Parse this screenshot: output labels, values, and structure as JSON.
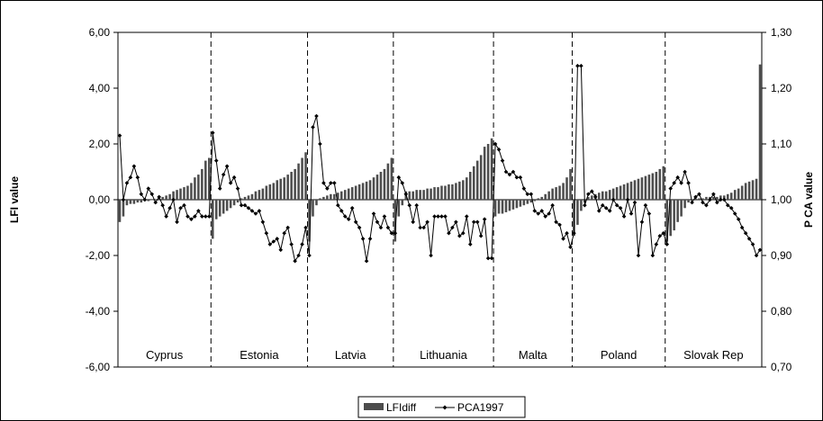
{
  "chart_data": {
    "type": "bar",
    "title": "",
    "ylabel": "LFI value",
    "y2label": "P CA value",
    "ylim": [
      -6,
      6
    ],
    "y2lim": [
      0.7,
      1.3
    ],
    "yticks": [
      "6,00",
      "4,00",
      "2,00",
      "0,00",
      "-2,00",
      "-4,00",
      "-6,00"
    ],
    "y2ticks": [
      "1,30",
      "1,20",
      "1,10",
      "1,00",
      "0,90",
      "0,80",
      "0,70"
    ],
    "grid": false,
    "legend_position": "bottom",
    "groups": [
      {
        "name": "Cyprus",
        "lfi": [
          -0.8,
          -0.6,
          -0.2,
          -0.15,
          -0.15,
          -0.1,
          -0.1,
          -0.05,
          -0.05,
          0.0,
          0.0,
          0.05,
          0.1,
          0.15,
          0.2,
          0.3,
          0.35,
          0.4,
          0.45,
          0.5,
          0.6,
          0.8,
          0.9,
          1.1,
          1.4,
          1.5
        ],
        "pca": [
          1.115,
          1.0,
          1.03,
          1.04,
          1.06,
          1.04,
          1.01,
          1.0,
          1.02,
          1.01,
          0.995,
          1.005,
          0.99,
          0.97,
          0.985,
          1.0,
          0.96,
          0.985,
          0.99,
          0.97,
          0.965,
          0.97,
          0.98,
          0.97,
          0.97,
          0.97
        ]
      },
      {
        "name": "Estonia",
        "lfi": [
          -1.4,
          -0.7,
          -0.6,
          -0.5,
          -0.4,
          -0.3,
          -0.2,
          -0.1,
          0.05,
          0.1,
          0.15,
          0.2,
          0.3,
          0.35,
          0.4,
          0.5,
          0.55,
          0.6,
          0.7,
          0.75,
          0.8,
          0.9,
          1.0,
          1.1,
          1.3,
          1.5,
          1.7
        ],
        "pca": [
          1.12,
          1.07,
          1.02,
          1.045,
          1.06,
          1.03,
          1.04,
          1.02,
          0.99,
          0.99,
          0.985,
          0.98,
          0.975,
          0.98,
          0.96,
          0.94,
          0.92,
          0.925,
          0.93,
          0.91,
          0.94,
          0.95,
          0.92,
          0.89,
          0.9,
          0.92,
          0.95
        ]
      },
      {
        "name": "Latvia",
        "lfi": [
          -1.5,
          -0.6,
          -0.2,
          0.05,
          0.1,
          0.15,
          0.2,
          0.2,
          0.25,
          0.3,
          0.35,
          0.4,
          0.45,
          0.5,
          0.55,
          0.6,
          0.65,
          0.7,
          0.8,
          0.9,
          1.0,
          1.1,
          1.3,
          1.5
        ],
        "pca": [
          0.9,
          1.13,
          1.15,
          1.1,
          1.03,
          1.02,
          1.03,
          1.03,
          0.99,
          0.98,
          0.97,
          0.965,
          0.985,
          0.96,
          0.95,
          0.93,
          0.89,
          0.93,
          0.975,
          0.96,
          0.95,
          0.97,
          0.95,
          0.94
        ]
      },
      {
        "name": "Lithuania",
        "lfi": [
          -1.5,
          -0.6,
          -0.2,
          0.3,
          0.3,
          0.3,
          0.35,
          0.35,
          0.35,
          0.4,
          0.4,
          0.45,
          0.45,
          0.5,
          0.5,
          0.55,
          0.55,
          0.6,
          0.65,
          0.7,
          0.8,
          1.0,
          1.2,
          1.4,
          1.6,
          1.9,
          2.0,
          2.2
        ],
        "pca": [
          0.94,
          1.04,
          1.03,
          1.01,
          0.99,
          0.96,
          0.99,
          0.95,
          0.95,
          0.96,
          0.9,
          0.97,
          0.97,
          0.97,
          0.97,
          0.94,
          0.95,
          0.96,
          0.935,
          0.94,
          0.97,
          0.92,
          0.96,
          0.96,
          0.935,
          0.965,
          0.895,
          0.895
        ]
      },
      {
        "name": "Malta",
        "lfi": [
          -0.6,
          -0.5,
          -0.5,
          -0.45,
          -0.4,
          -0.35,
          -0.3,
          -0.25,
          -0.2,
          -0.15,
          -0.1,
          -0.05,
          0.05,
          0.1,
          0.2,
          0.3,
          0.4,
          0.45,
          0.5,
          0.6,
          0.8,
          1.1
        ],
        "pca": [
          1.1,
          1.09,
          1.07,
          1.05,
          1.045,
          1.05,
          1.04,
          1.04,
          1.02,
          1.01,
          1.01,
          0.98,
          0.975,
          0.98,
          0.97,
          0.975,
          0.99,
          0.96,
          0.955,
          0.93,
          0.94,
          0.915
        ]
      },
      {
        "name": "Poland",
        "lfi": [
          -1.3,
          -0.9,
          -0.4,
          -0.1,
          0.1,
          0.15,
          0.2,
          0.25,
          0.3,
          0.3,
          0.35,
          0.4,
          0.45,
          0.5,
          0.55,
          0.6,
          0.65,
          0.7,
          0.75,
          0.8,
          0.85,
          0.9,
          0.95,
          1.0,
          1.1,
          1.2
        ],
        "pca": [
          0.94,
          1.24,
          1.24,
          0.99,
          1.01,
          1.015,
          1.005,
          0.98,
          0.99,
          0.985,
          0.98,
          1.0,
          0.99,
          0.985,
          0.97,
          1.0,
          0.975,
          0.995,
          0.9,
          0.96,
          0.99,
          0.975,
          0.9,
          0.92,
          0.935,
          0.94
        ]
      },
      {
        "name": "Slovak Rep",
        "lfi": [
          -1.5,
          -1.3,
          -1.1,
          -0.8,
          -0.6,
          -0.3,
          -0.1,
          0.0,
          0.05,
          0.05,
          0.05,
          0.1,
          0.1,
          0.1,
          0.1,
          0.15,
          0.15,
          0.2,
          0.25,
          0.35,
          0.4,
          0.5,
          0.6,
          0.65,
          0.7,
          0.75,
          4.85
        ],
        "pca": [
          0.92,
          1.02,
          1.03,
          1.04,
          1.03,
          1.05,
          1.03,
          0.995,
          1.005,
          1.01,
          0.995,
          0.99,
          1.0,
          1.01,
          0.995,
          1.0,
          1.0,
          0.99,
          0.985,
          0.975,
          0.965,
          0.95,
          0.94,
          0.93,
          0.92,
          0.9,
          0.91
        ]
      }
    ],
    "legend": [
      {
        "name": "LFIdiff",
        "kind": "bar",
        "color": "#4d4d4d"
      },
      {
        "name": "PCA1997",
        "kind": "line-marker",
        "color": "#000000"
      }
    ]
  }
}
